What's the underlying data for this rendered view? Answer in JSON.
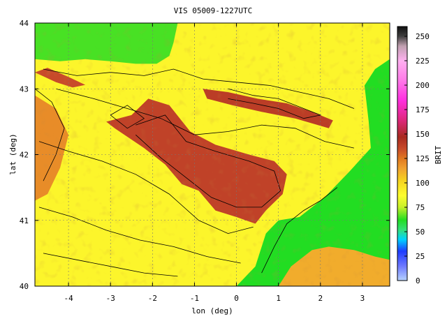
{
  "title": "VIS 05009-1227UTC",
  "x_axis": {
    "label": "lon (deg)",
    "range": [
      -4.8,
      3.65
    ],
    "ticks": [
      {
        "v": -4,
        "t": "-4"
      },
      {
        "v": -3,
        "t": "-3"
      },
      {
        "v": -2,
        "t": "-2"
      },
      {
        "v": -1,
        "t": "-1"
      },
      {
        "v": 0,
        "t": "0"
      },
      {
        "v": 1,
        "t": "1"
      },
      {
        "v": 2,
        "t": "2"
      },
      {
        "v": 3,
        "t": "3"
      }
    ]
  },
  "y_axis": {
    "label": "lat (deg)",
    "range": [
      40,
      44
    ],
    "ticks": [
      {
        "v": 40,
        "t": "40"
      },
      {
        "v": 41,
        "t": "41"
      },
      {
        "v": 42,
        "t": "42"
      },
      {
        "v": 43,
        "t": "43"
      },
      {
        "v": 44,
        "t": "44"
      }
    ]
  },
  "colorbar": {
    "label": "BRIT",
    "range": [
      0,
      260
    ],
    "ticks": [
      {
        "v": 0,
        "t": "0"
      },
      {
        "v": 25,
        "t": "25"
      },
      {
        "v": 50,
        "t": "50"
      },
      {
        "v": 75,
        "t": "75"
      },
      {
        "v": 100,
        "t": "100"
      },
      {
        "v": 125,
        "t": "125"
      },
      {
        "v": 150,
        "t": "150"
      },
      {
        "v": 175,
        "t": "175"
      },
      {
        "v": 200,
        "t": "200"
      },
      {
        "v": 225,
        "t": "225"
      },
      {
        "v": 250,
        "t": "250"
      }
    ],
    "stops": [
      {
        "v": 0,
        "c": "#b7d3ff"
      },
      {
        "v": 15,
        "c": "#6d78ff"
      },
      {
        "v": 30,
        "c": "#1e3cff"
      },
      {
        "v": 42,
        "c": "#00d2ff"
      },
      {
        "v": 52,
        "c": "#35e07a"
      },
      {
        "v": 62,
        "c": "#22dd22"
      },
      {
        "v": 75,
        "c": "#c6f02a"
      },
      {
        "v": 87,
        "c": "#fdfd2e"
      },
      {
        "v": 103,
        "c": "#f5d020"
      },
      {
        "v": 115,
        "c": "#f0a030"
      },
      {
        "v": 125,
        "c": "#e07820"
      },
      {
        "v": 135,
        "c": "#c84a2a"
      },
      {
        "v": 147,
        "c": "#a82a20"
      },
      {
        "v": 165,
        "c": "#e02880"
      },
      {
        "v": 185,
        "c": "#ff30e0"
      },
      {
        "v": 205,
        "c": "#ff7ae8"
      },
      {
        "v": 225,
        "c": "#ffb0f0"
      },
      {
        "v": 240,
        "c": "#c0a0b0"
      },
      {
        "v": 250,
        "c": "#404040"
      },
      {
        "v": 260,
        "c": "#101010"
      }
    ]
  },
  "map": {
    "regions": [
      {
        "name": "sea-north",
        "value": 65,
        "lonlat": [
          [
            -4.8,
            44
          ],
          [
            -4.8,
            43.45
          ],
          [
            -4.2,
            43.42
          ],
          [
            -3.6,
            43.45
          ],
          [
            -3,
            43.42
          ],
          [
            -2.4,
            43.38
          ],
          [
            -1.9,
            43.38
          ],
          [
            -1.6,
            43.5
          ],
          [
            -1.5,
            43.7
          ],
          [
            -1.4,
            44
          ]
        ]
      },
      {
        "name": "sea-east",
        "value": 62,
        "lonlat": [
          [
            3.65,
            43.45
          ],
          [
            3.3,
            43.3
          ],
          [
            3.05,
            43.05
          ],
          [
            3.15,
            42.5
          ],
          [
            3.2,
            42.1
          ],
          [
            2.7,
            41.75
          ],
          [
            2.1,
            41.35
          ],
          [
            1.5,
            41.05
          ],
          [
            1.0,
            41.0
          ],
          [
            0.7,
            40.8
          ],
          [
            0.45,
            40.3
          ],
          [
            0.0,
            40.0
          ],
          [
            3.65,
            40.0
          ]
        ]
      },
      {
        "name": "highlands-east",
        "value": 112,
        "lonlat": [
          [
            1.0,
            40
          ],
          [
            1.3,
            40.3
          ],
          [
            1.8,
            40.55
          ],
          [
            2.2,
            40.6
          ],
          [
            2.8,
            40.55
          ],
          [
            3.3,
            40.45
          ],
          [
            3.65,
            40.4
          ],
          [
            3.65,
            40
          ]
        ]
      },
      {
        "name": "ebro-valley",
        "value": 138,
        "lonlat": [
          [
            -2.5,
            42.6
          ],
          [
            -2.1,
            42.85
          ],
          [
            -1.6,
            42.75
          ],
          [
            -1.1,
            42.35
          ],
          [
            -0.5,
            42.15
          ],
          [
            0.3,
            42.0
          ],
          [
            0.9,
            41.9
          ],
          [
            1.2,
            41.7
          ],
          [
            1.1,
            41.4
          ],
          [
            0.7,
            41.15
          ],
          [
            0.45,
            40.95
          ],
          [
            0.0,
            41.05
          ],
          [
            -0.5,
            41.15
          ],
          [
            -0.9,
            41.45
          ],
          [
            -1.3,
            41.55
          ],
          [
            -1.7,
            41.85
          ],
          [
            -2.2,
            42.1
          ],
          [
            -2.9,
            42.4
          ],
          [
            -3.1,
            42.5
          ]
        ]
      },
      {
        "name": "plateau-west",
        "value": 120,
        "lonlat": [
          [
            -4.8,
            42.9
          ],
          [
            -4.3,
            42.7
          ],
          [
            -4.0,
            42.3
          ],
          [
            -4.2,
            41.8
          ],
          [
            -4.5,
            41.4
          ],
          [
            -4.8,
            41.3
          ]
        ]
      },
      {
        "name": "pyrenees-ridge",
        "value": 140,
        "lonlat": [
          [
            -0.8,
            43.0
          ],
          [
            -0.2,
            42.95
          ],
          [
            0.5,
            42.85
          ],
          [
            1.2,
            42.78
          ],
          [
            1.8,
            42.65
          ],
          [
            2.3,
            42.52
          ],
          [
            2.2,
            42.4
          ],
          [
            1.4,
            42.55
          ],
          [
            0.6,
            42.65
          ],
          [
            -0.1,
            42.75
          ],
          [
            -0.7,
            42.85
          ]
        ]
      },
      {
        "name": "cantabrian-ridge",
        "value": 135,
        "lonlat": [
          [
            -4.8,
            43.25
          ],
          [
            -4.3,
            43.1
          ],
          [
            -3.9,
            43.02
          ],
          [
            -3.6,
            43.06
          ],
          [
            -4.0,
            43.18
          ],
          [
            -4.5,
            43.32
          ]
        ]
      }
    ],
    "contours": [
      [
        [
          -4.6,
          43.3
        ],
        [
          -3.8,
          43.2
        ],
        [
          -3.0,
          43.25
        ],
        [
          -2.2,
          43.2
        ],
        [
          -1.5,
          43.3
        ],
        [
          -0.8,
          43.15
        ],
        [
          0.0,
          43.1
        ],
        [
          0.8,
          43.05
        ],
        [
          1.5,
          42.95
        ],
        [
          2.2,
          42.85
        ],
        [
          2.8,
          42.7
        ]
      ],
      [
        [
          -4.3,
          43.0
        ],
        [
          -3.4,
          42.85
        ],
        [
          -2.6,
          42.7
        ],
        [
          -1.8,
          42.55
        ],
        [
          -1.0,
          42.3
        ],
        [
          -0.2,
          42.35
        ],
        [
          0.6,
          42.45
        ],
        [
          1.4,
          42.4
        ],
        [
          2.1,
          42.2
        ],
        [
          2.8,
          42.1
        ]
      ],
      [
        [
          -4.7,
          42.2
        ],
        [
          -4.0,
          42.05
        ],
        [
          -3.2,
          41.9
        ],
        [
          -2.4,
          41.7
        ],
        [
          -1.6,
          41.4
        ],
        [
          -0.9,
          41.0
        ],
        [
          -0.2,
          40.8
        ],
        [
          0.4,
          40.9
        ]
      ],
      [
        [
          -4.7,
          41.2
        ],
        [
          -3.9,
          41.05
        ],
        [
          -3.1,
          40.85
        ],
        [
          -2.3,
          40.7
        ],
        [
          -1.5,
          40.6
        ],
        [
          -0.7,
          40.45
        ],
        [
          0.1,
          40.35
        ]
      ],
      [
        [
          -4.6,
          40.5
        ],
        [
          -3.8,
          40.4
        ],
        [
          -3.0,
          40.3
        ],
        [
          -2.2,
          40.2
        ],
        [
          -1.4,
          40.15
        ]
      ],
      [
        [
          -2.4,
          42.45
        ],
        [
          -1.7,
          42.6
        ],
        [
          -1.2,
          42.2
        ],
        [
          -0.5,
          42.05
        ],
        [
          0.3,
          41.9
        ],
        [
          0.9,
          41.75
        ],
        [
          1.05,
          41.45
        ],
        [
          0.6,
          41.2
        ],
        [
          0.0,
          41.2
        ],
        [
          -0.6,
          41.35
        ],
        [
          -1.1,
          41.6
        ],
        [
          -1.8,
          41.95
        ],
        [
          -2.4,
          42.3
        ]
      ],
      [
        [
          -0.2,
          43.0
        ],
        [
          0.4,
          42.9
        ],
        [
          1.0,
          42.85
        ],
        [
          1.6,
          42.7
        ],
        [
          2.0,
          42.6
        ],
        [
          1.6,
          42.55
        ],
        [
          1.0,
          42.7
        ],
        [
          0.4,
          42.78
        ],
        [
          -0.2,
          42.85
        ]
      ],
      [
        [
          -3.0,
          42.6
        ],
        [
          -2.6,
          42.75
        ],
        [
          -2.2,
          42.55
        ],
        [
          -2.6,
          42.4
        ],
        [
          -3.0,
          42.6
        ]
      ],
      [
        [
          2.4,
          41.5
        ],
        [
          2.0,
          41.3
        ],
        [
          1.6,
          41.15
        ],
        [
          1.2,
          40.95
        ],
        [
          0.9,
          40.6
        ],
        [
          0.6,
          40.2
        ]
      ],
      [
        [
          -4.8,
          43.0
        ],
        [
          -4.4,
          42.8
        ],
        [
          -4.1,
          42.4
        ],
        [
          -4.3,
          42.0
        ],
        [
          -4.6,
          41.6
        ]
      ]
    ]
  }
}
